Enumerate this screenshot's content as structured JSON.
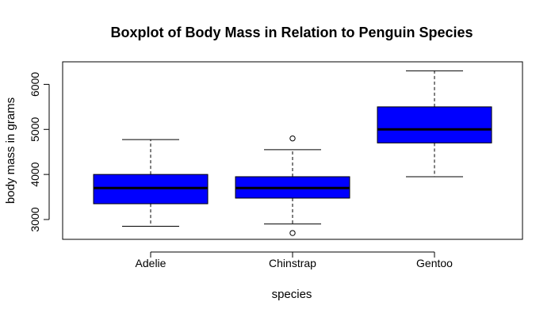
{
  "chart_data": {
    "type": "boxplot",
    "title": "Boxplot of Body Mass in Relation to Penguin Species",
    "xlabel": "species",
    "ylabel": "body mass in grams",
    "ylim": [
      2560,
      6500
    ],
    "yticks": [
      3000,
      4000,
      5000,
      6000
    ],
    "grid": false,
    "legend": "none",
    "colors": {
      "box_fill": "#0000ff",
      "median": "#000000",
      "background": "#ffffff"
    },
    "categories": [
      "Adelie",
      "Chinstrap",
      "Gentoo"
    ],
    "boxes": [
      {
        "category": "Adelie",
        "whisker_low": 2850,
        "q1": 3350,
        "median": 3700,
        "q3": 4000,
        "whisker_high": 4775,
        "outliers": []
      },
      {
        "category": "Chinstrap",
        "whisker_low": 2900,
        "q1": 3475,
        "median": 3700,
        "q3": 3950,
        "whisker_high": 4550,
        "outliers": [
          4800,
          2700
        ]
      },
      {
        "category": "Gentoo",
        "whisker_low": 3950,
        "q1": 4700,
        "median": 5000,
        "q3": 5500,
        "whisker_high": 6300,
        "outliers": []
      }
    ]
  }
}
